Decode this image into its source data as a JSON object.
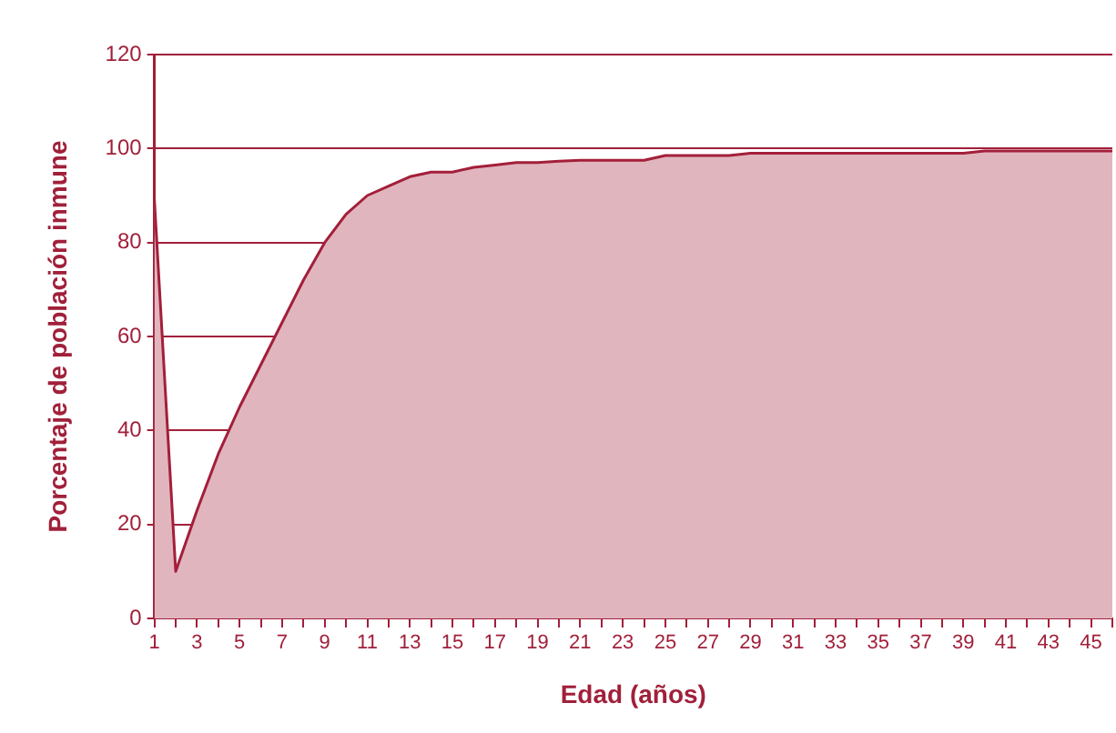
{
  "chart_data": {
    "type": "area",
    "xlabel": "Edad (años)",
    "ylabel": "Porcentaje de población inmune",
    "x": [
      1,
      2,
      3,
      4,
      5,
      6,
      7,
      8,
      9,
      10,
      11,
      12,
      13,
      14,
      15,
      16,
      17,
      18,
      19,
      20,
      21,
      22,
      23,
      24,
      25,
      26,
      27,
      28,
      29,
      30,
      31,
      32,
      33,
      34,
      35,
      36,
      37,
      38,
      39,
      40,
      41,
      42,
      43,
      44,
      45,
      46
    ],
    "series": [
      {
        "color": "#a31f3a",
        "values": [
          89,
          10,
          23,
          35,
          45,
          54,
          63,
          72,
          80,
          86,
          90,
          92,
          94,
          95,
          95,
          96,
          96.5,
          97,
          97,
          97.3,
          97.5,
          97.5,
          97.5,
          97.5,
          98.5,
          98.5,
          98.5,
          98.5,
          99,
          99,
          99,
          99,
          99,
          99,
          99,
          99,
          99,
          99,
          99,
          99.5,
          99.5,
          99.5,
          99.5,
          99.5,
          99.5,
          99.5
        ]
      }
    ],
    "xlim": [
      1,
      46
    ],
    "xticks": [
      1,
      {
        "value": 2,
        "label": null
      },
      3,
      {
        "value": 4,
        "label": null
      },
      5,
      {
        "value": 6,
        "label": null
      },
      7,
      {
        "value": 8,
        "label": null
      },
      9,
      {
        "value": 10,
        "label": null
      },
      11,
      {
        "value": 12,
        "label": null
      },
      13,
      {
        "value": 14,
        "label": null
      },
      15,
      {
        "value": 16,
        "label": null
      },
      17,
      {
        "value": 18,
        "label": null
      },
      19,
      {
        "value": 20,
        "label": null
      },
      21,
      {
        "value": 22,
        "label": null
      },
      23,
      {
        "value": 24,
        "label": null
      },
      25,
      {
        "value": 26,
        "label": null
      },
      27,
      {
        "value": 28,
        "label": null
      },
      29,
      {
        "value": 30,
        "label": null
      },
      31,
      {
        "value": 32,
        "label": null
      },
      33,
      {
        "value": 34,
        "label": null
      },
      35,
      {
        "value": 36,
        "label": null
      },
      37,
      {
        "value": 38,
        "label": null
      },
      39,
      {
        "value": 40,
        "label": null
      },
      41,
      {
        "value": 42,
        "label": null
      },
      43,
      {
        "value": 44,
        "label": null
      },
      45,
      {
        "value": 46,
        "label": null
      }
    ],
    "ylim": [
      0,
      120
    ],
    "yticks": [
      0,
      20,
      40,
      60,
      80,
      100,
      120
    ],
    "grid": "y",
    "legend": false,
    "marker": "none",
    "line_style": "solid"
  }
}
